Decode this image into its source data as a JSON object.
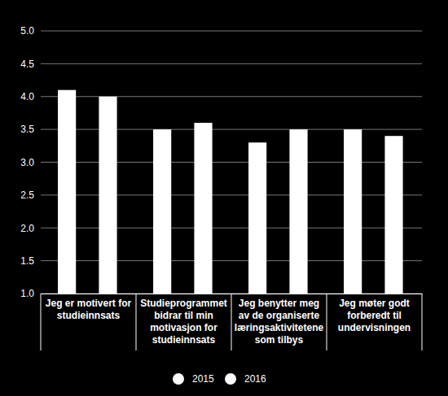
{
  "chart_data": {
    "type": "bar",
    "categories": [
      "Jeg er motivert for\nstudieinnsats",
      "Studieprogrammet\nbidrar til min\nmotivasjon for\nstudieinnsats",
      "Jeg benytter meg\nav de organiserte\nlæringsaktivitetene\nsom tilbys",
      "Jeg møter godt\nforberedt til\nundervisningen"
    ],
    "series": [
      {
        "name": "2015",
        "color": "#ffffff",
        "values": [
          4.1,
          3.5,
          3.3,
          3.5
        ]
      },
      {
        "name": "2016",
        "color": "#ffffff",
        "values": [
          4.0,
          3.6,
          3.5,
          3.4
        ]
      }
    ],
    "ylim": [
      1,
      5
    ],
    "yticks": [
      {
        "value": 1,
        "label": "1.0"
      },
      1.5,
      {
        "value": 2,
        "label": "2.0"
      },
      2.5,
      {
        "value": 3,
        "label": "3.0"
      },
      3.5,
      {
        "value": 4,
        "label": "4.0"
      },
      4.5,
      {
        "value": 5,
        "label": "5.0"
      }
    ],
    "grid": true,
    "legend": "bottom"
  }
}
